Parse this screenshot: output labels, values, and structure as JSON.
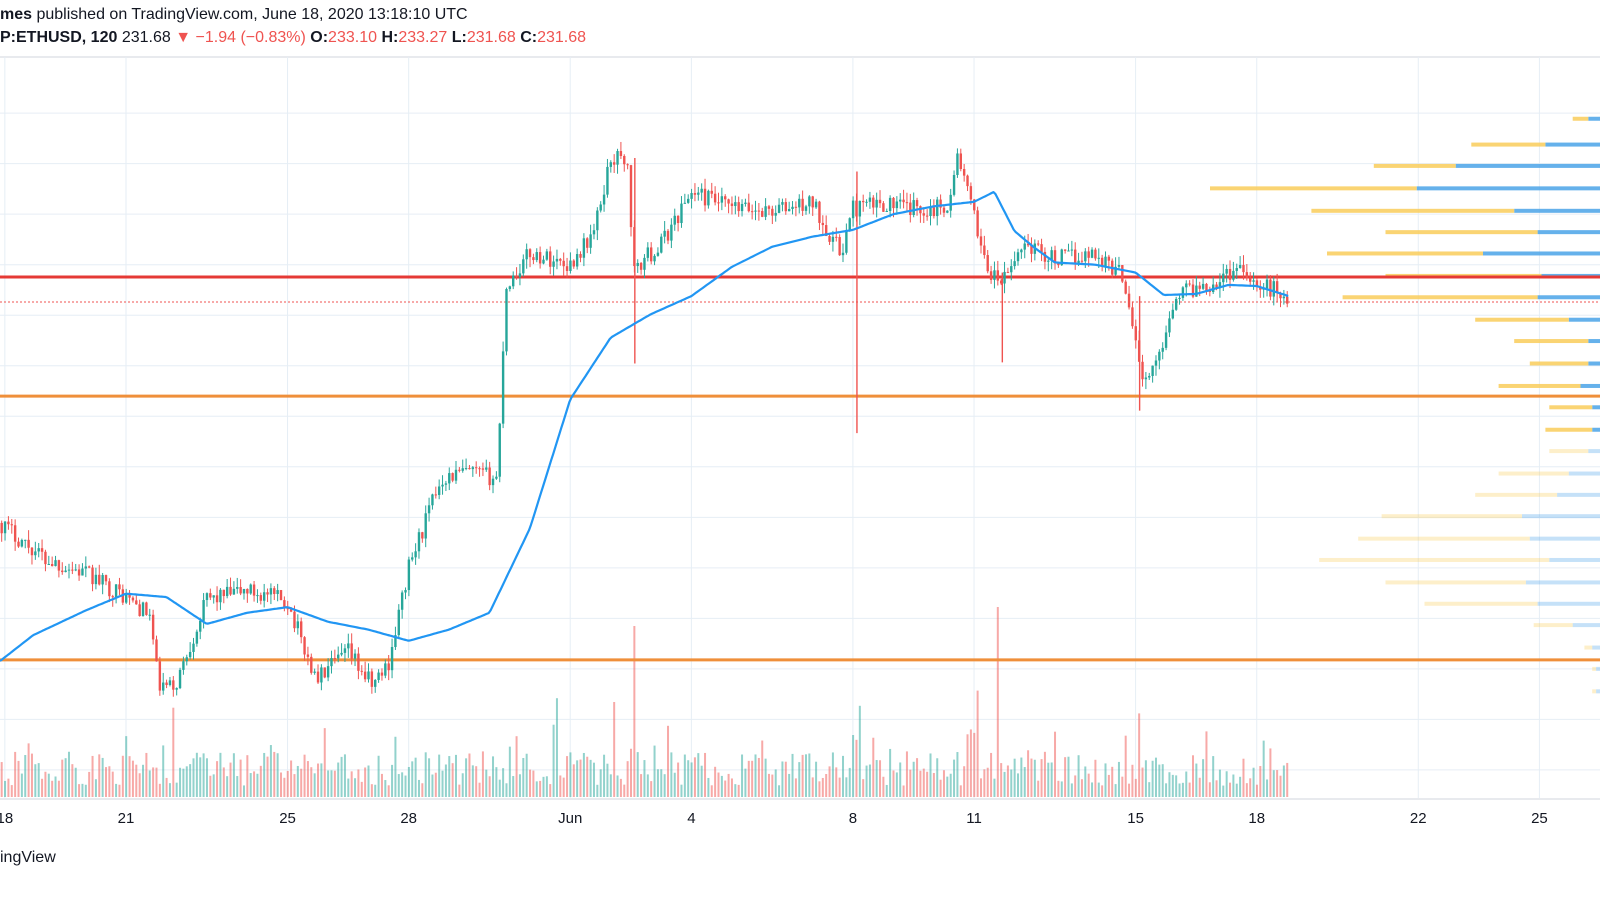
{
  "header": {
    "publish_author": "mes",
    "publish_text": " published on TradingView.com, June 18, 2020 13:18:10 UTC",
    "symbol": "P:ETHUSD, 120",
    "last": "231.68",
    "change_arrow": "▼",
    "change": "−1.94 (−0.83%)",
    "open_label": "O:",
    "open": "233.10",
    "high_label": "H:",
    "high": "233.27",
    "low_label": "L:",
    "low": "231.68",
    "close_label": "C:",
    "close": "231.68"
  },
  "footer": {
    "brand": "ingView"
  },
  "colors": {
    "up": "#26a69a",
    "down": "#ef5350",
    "ma": "#2196f3",
    "resistance": "#e53935",
    "support": "#ef8f3a",
    "vp_up": "#f9cc5b",
    "vp_down": "#4aa3e8",
    "grid": "#e6eef5"
  },
  "chart_data": {
    "type": "candlestick",
    "title": "",
    "xlabel": "",
    "ylabel": "",
    "x_tick_labels": [
      "18",
      "21",
      "25",
      "28",
      "Jun",
      "4",
      "8",
      "11",
      "15",
      "18",
      "22",
      "25"
    ],
    "x_tick_days": [
      -14,
      -11,
      -7,
      -4,
      0,
      3,
      7,
      10,
      14,
      17,
      21,
      24
    ],
    "x_range_days": [
      -14.12,
      25.5
    ],
    "data_end_day": 17.8,
    "y_range_price": [
      187.5,
      253.5
    ],
    "price_anchors": {
      "day": [
        -14.12,
        -13.0,
        -12.0,
        -11.0,
        -10.4,
        -10.2,
        -9.8,
        -9.0,
        -8.0,
        -7.0,
        -6.3,
        -5.5,
        -4.9,
        -4.5,
        -4.0,
        -3.2,
        -2.6,
        -1.8,
        -1.6,
        -1.0,
        0.0,
        0.6,
        1.0,
        1.4,
        1.6,
        1.8,
        2.2,
        3.0,
        4.0,
        5.0,
        6.0,
        6.7,
        7.0,
        7.8,
        8.4,
        9.0,
        9.4,
        9.6,
        9.9,
        10.4,
        10.7,
        10.9,
        11.2,
        12.0,
        13.0,
        13.7,
        14.0,
        14.2,
        14.5,
        15.0,
        16.0,
        16.6,
        16.8,
        17.0,
        17.5,
        17.8
      ],
      "price": [
        212.0,
        208.8,
        207.5,
        205.4,
        203.7,
        197.5,
        197.3,
        205.2,
        206.0,
        205.0,
        198.0,
        200.5,
        197.5,
        199.5,
        208.0,
        216.0,
        216.5,
        216.0,
        233.0,
        236.0,
        235.0,
        238.0,
        244.5,
        244.5,
        233.8,
        235.5,
        236.5,
        241.5,
        240.0,
        239.8,
        240.5,
        236.0,
        240.0,
        240.5,
        240.0,
        240.0,
        240.5,
        245.0,
        240.5,
        234.0,
        233.5,
        234.5,
        237.0,
        235.5,
        236.0,
        234.0,
        228.5,
        224.2,
        226.0,
        232.5,
        233.5,
        235.0,
        234.3,
        233.0,
        232.8,
        231.68
      ]
    },
    "ma_line": {
      "day": [
        -14.12,
        -13.3,
        -12.0,
        -11.0,
        -10.0,
        -9.0,
        -8.0,
        -7.0,
        -6.0,
        -5.0,
        -4.0,
        -3.0,
        -2.0,
        -1.0,
        0.0,
        1.0,
        2.0,
        2.5,
        3.0,
        4.0,
        5.0,
        6.0,
        7.0,
        8.0,
        9.0,
        10.0,
        10.5,
        11.0,
        11.5,
        12.0,
        13.0,
        14.0,
        14.7,
        15.5,
        16.3,
        17.0,
        17.8
      ],
      "price": [
        199.7,
        202.0,
        204.2,
        205.7,
        205.4,
        203.0,
        204.0,
        204.5,
        203.2,
        202.5,
        201.5,
        202.5,
        204.0,
        211.5,
        223.0,
        228.5,
        230.6,
        231.4,
        232.2,
        234.8,
        236.6,
        237.5,
        238.1,
        239.5,
        240.2,
        240.6,
        241.5,
        238.0,
        236.5,
        235.2,
        235.0,
        234.3,
        232.3,
        232.4,
        233.2,
        233.1,
        232.2
      ]
    },
    "spikes": [
      {
        "day": 1.6,
        "high": 244.5,
        "low": 226.2
      },
      {
        "day": 7.1,
        "high": 243.3,
        "low": 220.0
      },
      {
        "day": 10.7,
        "high": 234.3,
        "low": 226.3
      },
      {
        "day": 14.1,
        "high": 232.2,
        "low": 222.0
      }
    ],
    "volume_spikes": [
      {
        "day": 1.6,
        "height_ratio": 0.9
      },
      {
        "day": 10.6,
        "height_ratio": 1.0
      },
      {
        "day": 10.05,
        "height_ratio": 0.56
      },
      {
        "day": -0.3,
        "height_ratio": 0.52
      },
      {
        "day": 1.1,
        "height_ratio": 0.5
      },
      {
        "day": 7.2,
        "height_ratio": 0.48
      },
      {
        "day": -1.3,
        "height_ratio": 0.32
      },
      {
        "day": -9.8,
        "height_ratio": 0.47
      },
      {
        "day": 14.1,
        "height_ratio": 0.44
      }
    ],
    "horizontal_levels": [
      {
        "name": "resistance",
        "price": 233.9,
        "color": "#e53935"
      },
      {
        "name": "support-upper",
        "price": 223.3,
        "color": "#ef8f3a"
      },
      {
        "name": "support-lower",
        "price": 199.8,
        "color": "#ef8f3a"
      }
    ],
    "last_price_line": 231.68,
    "volume_profile": {
      "bin_prices": [
        248.0,
        245.7,
        243.8,
        241.8,
        239.8,
        237.9,
        236.0,
        234.0,
        232.1,
        230.1,
        228.2,
        226.2,
        224.2,
        222.3,
        220.3,
        218.4,
        216.4,
        214.5,
        212.6,
        210.6,
        208.7,
        206.7,
        204.8,
        202.9,
        200.9,
        199.0,
        197.0
      ],
      "total": [
        0.07,
        0.33,
        0.58,
        1.0,
        0.74,
        0.55,
        0.7,
        0.55,
        0.66,
        0.32,
        0.22,
        0.18,
        0.26,
        0.13,
        0.14,
        0.13,
        0.26,
        0.32,
        0.56,
        0.62,
        0.72,
        0.55,
        0.45,
        0.17,
        0.04,
        0.02,
        0.02
      ],
      "up": [
        0.04,
        0.19,
        0.21,
        0.53,
        0.52,
        0.39,
        0.4,
        0.4,
        0.5,
        0.24,
        0.19,
        0.15,
        0.21,
        0.11,
        0.12,
        0.1,
        0.18,
        0.21,
        0.36,
        0.44,
        0.59,
        0.36,
        0.29,
        0.1,
        0.02,
        0.01,
        0.01
      ],
      "faded_below_price": 220.0
    }
  }
}
